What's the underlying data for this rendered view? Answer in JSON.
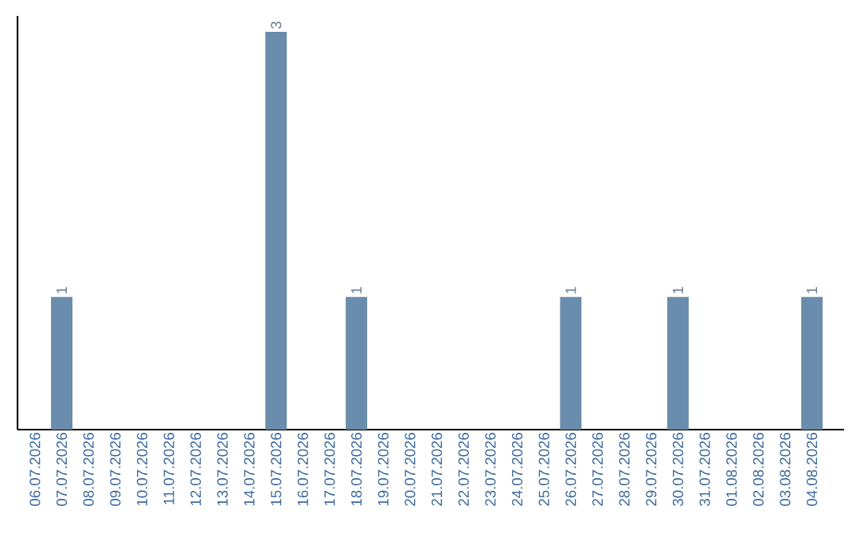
{
  "chart_data": {
    "type": "bar",
    "categories": [
      "06.07.2026",
      "07.07.2026",
      "08.07.2026",
      "09.07.2026",
      "10.07.2026",
      "11.07.2026",
      "12.07.2026",
      "13.07.2026",
      "14.07.2026",
      "15.07.2026",
      "16.07.2026",
      "17.07.2026",
      "18.07.2026",
      "19.07.2026",
      "20.07.2026",
      "21.07.2026",
      "22.07.2026",
      "23.07.2026",
      "24.07.2026",
      "25.07.2026",
      "26.07.2026",
      "27.07.2026",
      "28.07.2026",
      "29.07.2026",
      "30.07.2026",
      "31.07.2026",
      "01.08.2026",
      "02.08.2026",
      "03.08.2026",
      "04.08.2026"
    ],
    "values": [
      0,
      1,
      0,
      0,
      0,
      0,
      0,
      0,
      0,
      3,
      0,
      0,
      1,
      0,
      0,
      0,
      0,
      0,
      0,
      0,
      1,
      0,
      0,
      0,
      1,
      0,
      0,
      0,
      0,
      1
    ],
    "value_labels": [
      null,
      "1",
      null,
      null,
      null,
      null,
      null,
      null,
      null,
      "3",
      null,
      null,
      "1",
      null,
      null,
      null,
      null,
      null,
      null,
      null,
      "1",
      null,
      null,
      null,
      "1",
      null,
      null,
      null,
      null,
      "1"
    ],
    "color": "#6a8cad"
  }
}
